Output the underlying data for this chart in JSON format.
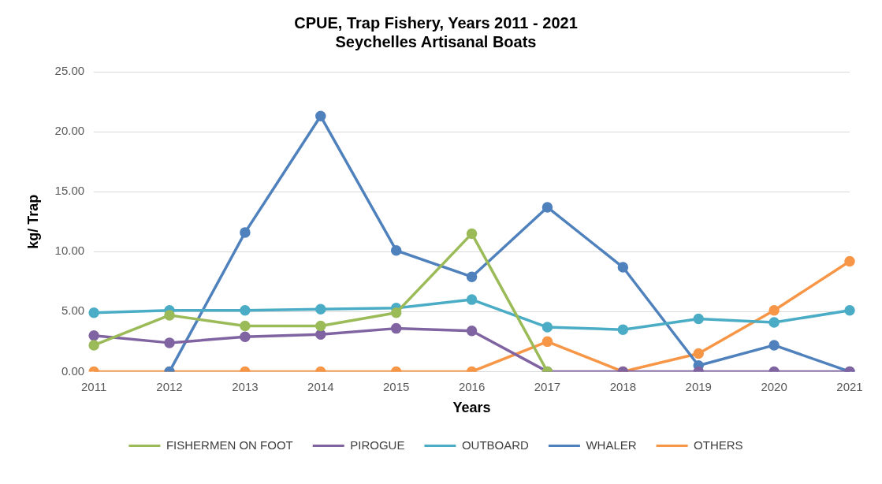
{
  "chart_data": {
    "type": "line",
    "title": "CPUE, Trap Fishery, Years 2011 - 2021",
    "subtitle": "Seychelles Artisanal Boats",
    "xlabel": "Years",
    "ylabel": "kg/ Trap",
    "categories": [
      "2011",
      "2012",
      "2013",
      "2014",
      "2015",
      "2016",
      "2017",
      "2018",
      "2019",
      "2020",
      "2021"
    ],
    "series": [
      {
        "name": "FISHERMEN ON FOOT",
        "color": "#9bbb59",
        "values": [
          2.2,
          4.7,
          3.8,
          3.8,
          4.9,
          11.5,
          0,
          null,
          null,
          null,
          null
        ]
      },
      {
        "name": "PIROGUE",
        "color": "#8064a2",
        "values": [
          3.0,
          2.4,
          2.9,
          3.1,
          3.6,
          3.4,
          0,
          0,
          0,
          0,
          0
        ]
      },
      {
        "name": "OUTBOARD",
        "color": "#4bacc6",
        "values": [
          4.9,
          5.1,
          5.1,
          5.2,
          5.3,
          6.0,
          3.7,
          3.5,
          4.4,
          4.1,
          5.1
        ]
      },
      {
        "name": "WHALER",
        "color": "#4f81bd",
        "values": [
          null,
          0,
          11.6,
          21.3,
          10.1,
          7.9,
          13.7,
          8.7,
          0.5,
          2.2,
          0
        ]
      },
      {
        "name": "OTHERS",
        "color": "#f79646",
        "values": [
          0,
          0,
          0,
          0,
          0,
          0,
          2.5,
          0,
          1.5,
          5.1,
          9.2
        ]
      }
    ],
    "ylim": [
      0,
      25
    ],
    "yticks": [
      {
        "value": 0,
        "label": "0.00"
      },
      {
        "value": 5,
        "label": "5.00"
      },
      {
        "value": 10,
        "label": "10.00"
      },
      {
        "value": 15,
        "label": "15.00"
      },
      {
        "value": 20,
        "label": "20.00"
      },
      {
        "value": 25,
        "label": "25.00"
      }
    ],
    "grid": "y",
    "legend": "bottom",
    "marker": "circle",
    "line_style": "solid"
  }
}
